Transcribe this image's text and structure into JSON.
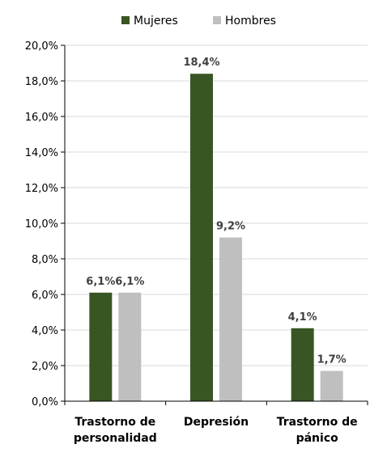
{
  "chart_data": {
    "type": "bar",
    "categories": [
      [
        "Trastorno de",
        "personalidad"
      ],
      [
        "Depresión"
      ],
      [
        "Trastorno de",
        "pánico"
      ]
    ],
    "series": [
      {
        "name": "Mujeres",
        "color": "#375623",
        "values": [
          6.1,
          18.4,
          4.1
        ],
        "labels": [
          "6,1%",
          "18,4%",
          "4,1%"
        ]
      },
      {
        "name": "Hombres",
        "color": "#bfbfbf",
        "values": [
          6.1,
          9.2,
          1.7
        ],
        "labels": [
          "6,1%",
          "9,2%",
          "1,7%"
        ]
      }
    ],
    "yticks": [
      0,
      2,
      4,
      6,
      8,
      10,
      12,
      14,
      16,
      18,
      20
    ],
    "ytick_labels": [
      "0,0%",
      "2,0%",
      "4,0%",
      "6,0%",
      "8,0%",
      "10,0%",
      "12,0%",
      "14,0%",
      "16,0%",
      "18,0%",
      "20,0%"
    ],
    "ylim": [
      0,
      20
    ],
    "grid": true,
    "legend_position": "top-center",
    "title": "",
    "xlabel": "",
    "ylabel": ""
  }
}
